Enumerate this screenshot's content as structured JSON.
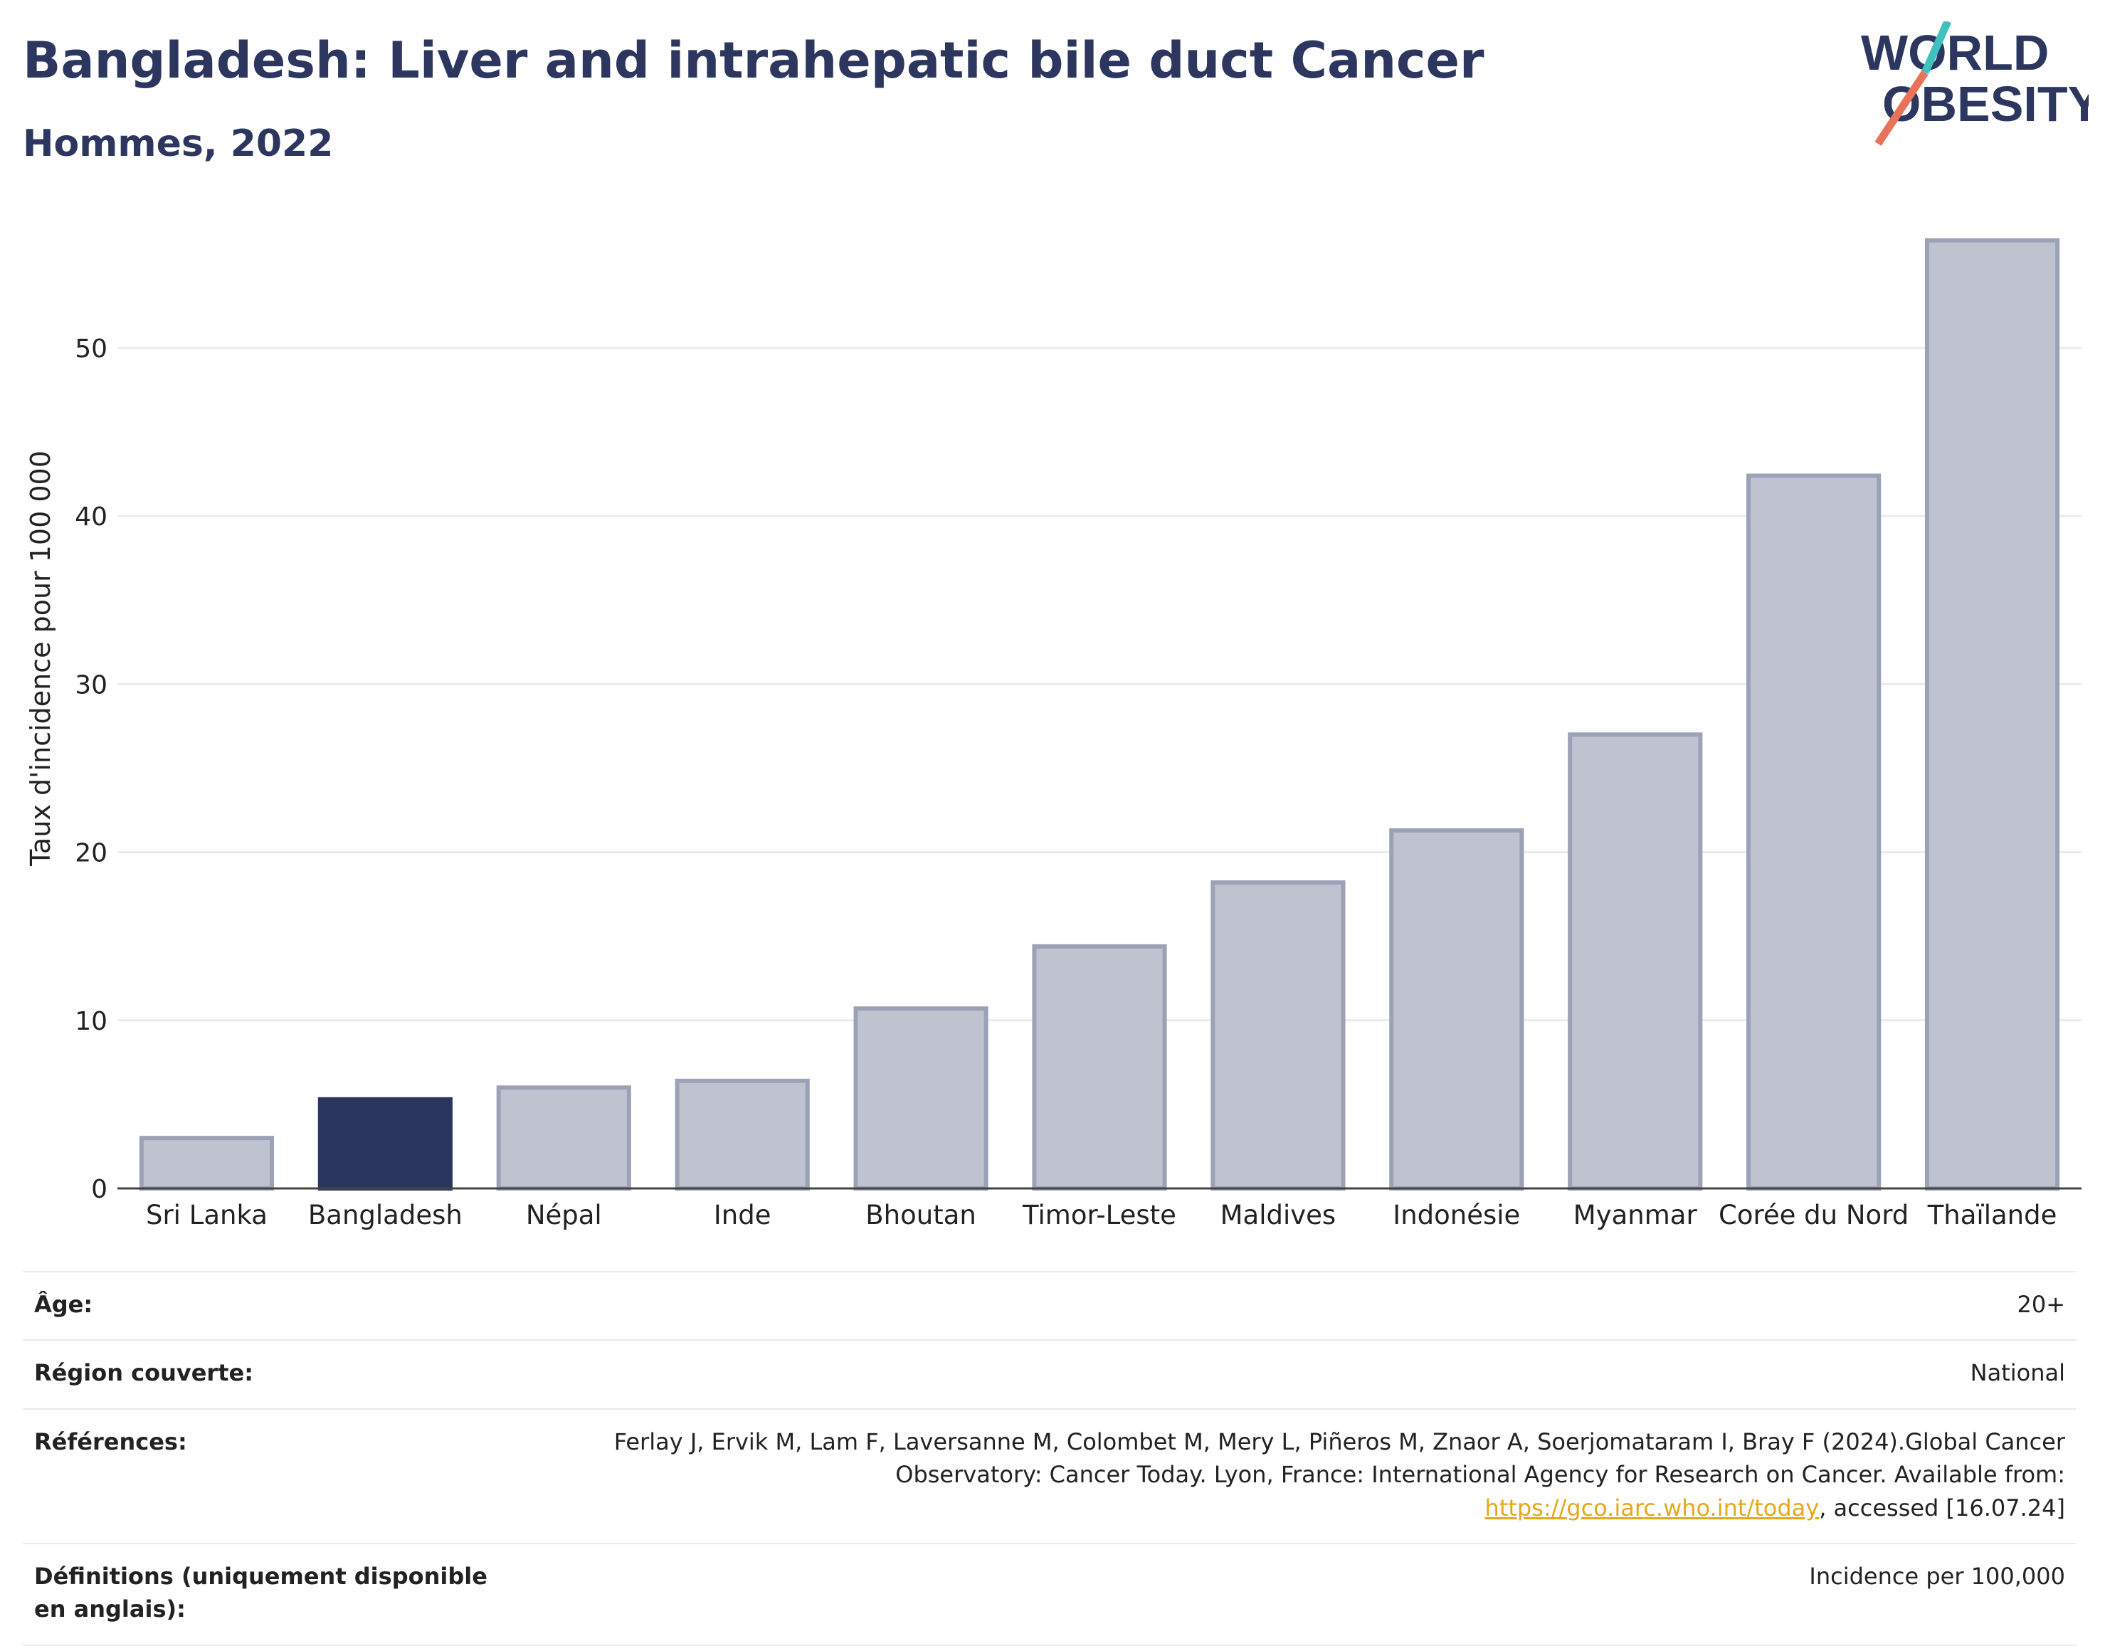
{
  "header": {
    "title": "Bangladesh: Liver and intrahepatic bile duct Cancer",
    "subtitle": "Hommes, 2022"
  },
  "logo": {
    "line1": "WORLD",
    "line2": "OBESITY",
    "accent_colors": [
      "#3fc1c0",
      "#e8735a"
    ]
  },
  "colors": {
    "highlight": "#2b365f",
    "bar_fill": "#bfc3cf",
    "bar_stroke": "#9ca2b6",
    "title": "#2c365e",
    "gridline": "#ebebeb",
    "link": "#e6a817"
  },
  "chart_data": {
    "type": "bar",
    "title": "",
    "xlabel": "",
    "ylabel": "Taux d'incidence pour 100 000",
    "categories": [
      "Sri Lanka",
      "Bangladesh",
      "Népal",
      "Inde",
      "Bhoutan",
      "Timor-Leste",
      "Maldives",
      "Indonésie",
      "Myanmar",
      "Corée du Nord",
      "Thaïlande"
    ],
    "values": [
      3.0,
      5.3,
      6.0,
      6.4,
      10.7,
      14.4,
      18.2,
      21.3,
      27.0,
      42.4,
      56.4
    ],
    "highlight": "Bangladesh",
    "ylim": [
      0,
      58
    ],
    "yticks": [
      0,
      10,
      20,
      30,
      40,
      50
    ],
    "grid": true,
    "legend": "none"
  },
  "info": {
    "rows": [
      {
        "label": "Âge:",
        "value": "20+"
      },
      {
        "label": "Région couverte:",
        "value": "National"
      },
      {
        "label": "Références:",
        "value": "Ferlay J, Ervik M, Lam F, Laversanne M, Colombet M, Mery L, Piñeros M, Znaor A, Soerjomataram I, Bray F (2024).Global Cancer Observatory: Cancer Today. Lyon, France: International Agency for Research on Cancer. Available from: ",
        "link": "https://gco.iarc.who.int/today",
        "suffix": ", accessed [16.07.24]"
      },
      {
        "label": "Définitions (uniquement disponible en anglais):",
        "value": "Incidence per 100,000"
      }
    ]
  }
}
